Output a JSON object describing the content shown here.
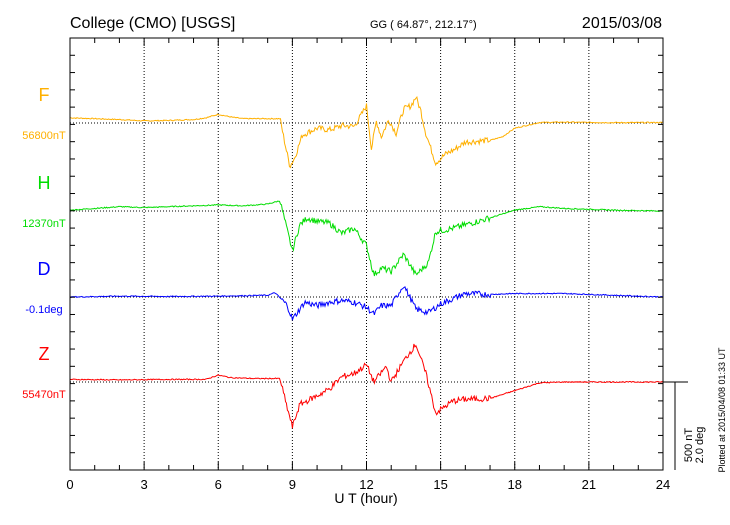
{
  "chart_data": {
    "type": "line",
    "title": "College (CMO)  [USGS]",
    "coords": "GG ( 64.87°, 212.17°)",
    "date": "2015/03/08",
    "xlabel": "U T (hour)",
    "xlim": [
      0,
      24
    ],
    "xticks": [
      "0",
      "3",
      "6",
      "9",
      "12",
      "15",
      "18",
      "21",
      "24"
    ],
    "grid": true,
    "scale_label_1": "500 nT",
    "scale_label_2": "2.0 deg",
    "plotted": "Plotted at 2015/04/08 01:33 UT",
    "series": [
      {
        "name": "F",
        "baseline_label": "56800nT",
        "color": "#ffb000",
        "points": [
          [
            0,
            30
          ],
          [
            1,
            25
          ],
          [
            2,
            20
          ],
          [
            3,
            12
          ],
          [
            4,
            15
          ],
          [
            5,
            20
          ],
          [
            5.5,
            30
          ],
          [
            6,
            50
          ],
          [
            6.5,
            35
          ],
          [
            7,
            25
          ],
          [
            8,
            25
          ],
          [
            8.5,
            25
          ],
          [
            8.7,
            -120
          ],
          [
            8.9,
            -250
          ],
          [
            9.1,
            -200
          ],
          [
            9.4,
            -70
          ],
          [
            10,
            -30
          ],
          [
            10.5,
            -40
          ],
          [
            11,
            -15
          ],
          [
            11.5,
            -20
          ],
          [
            11.8,
            50
          ],
          [
            12,
            100
          ],
          [
            12.2,
            -150
          ],
          [
            12.4,
            10
          ],
          [
            12.6,
            -80
          ],
          [
            12.9,
            20
          ],
          [
            13.2,
            -60
          ],
          [
            13.5,
            80
          ],
          [
            13.8,
            100
          ],
          [
            14,
            150
          ],
          [
            14.2,
            70
          ],
          [
            14.4,
            -60
          ],
          [
            14.8,
            -230
          ],
          [
            15.2,
            -180
          ],
          [
            15.6,
            -150
          ],
          [
            16,
            -110
          ],
          [
            17,
            -100
          ],
          [
            17.5,
            -80
          ],
          [
            18,
            -30
          ],
          [
            19,
            3
          ],
          [
            20,
            5
          ],
          [
            22,
            2
          ],
          [
            24,
            3
          ]
        ]
      },
      {
        "name": "H",
        "baseline_label": "12370nT",
        "color": "#00dd00",
        "points": [
          [
            0,
            5
          ],
          [
            1,
            15
          ],
          [
            2,
            25
          ],
          [
            3,
            20
          ],
          [
            4,
            25
          ],
          [
            5,
            30
          ],
          [
            6,
            35
          ],
          [
            7,
            30
          ],
          [
            8,
            40
          ],
          [
            8.5,
            60
          ],
          [
            8.7,
            -60
          ],
          [
            9,
            -230
          ],
          [
            9.3,
            -80
          ],
          [
            9.6,
            -40
          ],
          [
            10,
            -60
          ],
          [
            10.5,
            -70
          ],
          [
            11,
            -130
          ],
          [
            11.5,
            -100
          ],
          [
            12,
            -200
          ],
          [
            12.3,
            -370
          ],
          [
            12.6,
            -330
          ],
          [
            13,
            -350
          ],
          [
            13.5,
            -250
          ],
          [
            14,
            -370
          ],
          [
            14.5,
            -300
          ],
          [
            14.8,
            -120
          ],
          [
            15.5,
            -100
          ],
          [
            16,
            -80
          ],
          [
            17,
            -40
          ],
          [
            18,
            5
          ],
          [
            19,
            25
          ],
          [
            20,
            15
          ],
          [
            22,
            5
          ],
          [
            24,
            0
          ]
        ]
      },
      {
        "name": "D",
        "baseline_label": "-0.1deg",
        "color": "#0000ff",
        "points": [
          [
            0,
            0
          ],
          [
            2,
            5
          ],
          [
            4,
            3
          ],
          [
            6,
            5
          ],
          [
            8,
            10
          ],
          [
            8.3,
            25
          ],
          [
            8.8,
            -50
          ],
          [
            9,
            -130
          ],
          [
            9.5,
            -30
          ],
          [
            10,
            -50
          ],
          [
            10.5,
            -30
          ],
          [
            11,
            -20
          ],
          [
            11.5,
            -30
          ],
          [
            12,
            -60
          ],
          [
            12.3,
            -100
          ],
          [
            12.6,
            -50
          ],
          [
            13,
            -50
          ],
          [
            13.5,
            70
          ],
          [
            14,
            -70
          ],
          [
            14.5,
            -90
          ],
          [
            15,
            -40
          ],
          [
            16,
            20
          ],
          [
            17,
            15
          ],
          [
            18,
            20
          ],
          [
            20,
            20
          ],
          [
            22,
            10
          ],
          [
            24,
            0
          ]
        ]
      },
      {
        "name": "Z",
        "baseline_label": "55470nT",
        "color": "#ff0000",
        "points": [
          [
            0,
            15
          ],
          [
            2,
            12
          ],
          [
            4,
            15
          ],
          [
            5.5,
            15
          ],
          [
            6,
            40
          ],
          [
            6.5,
            25
          ],
          [
            7.5,
            20
          ],
          [
            8.5,
            20
          ],
          [
            8.7,
            -100
          ],
          [
            9,
            -260
          ],
          [
            9.3,
            -130
          ],
          [
            10,
            -80
          ],
          [
            10.5,
            -40
          ],
          [
            11,
            30
          ],
          [
            11.5,
            50
          ],
          [
            12,
            100
          ],
          [
            12.3,
            0
          ],
          [
            12.8,
            90
          ],
          [
            13,
            0
          ],
          [
            13.5,
            120
          ],
          [
            14,
            220
          ],
          [
            14.4,
            50
          ],
          [
            14.8,
            -180
          ],
          [
            15.5,
            -110
          ],
          [
            16,
            -100
          ],
          [
            17,
            -95
          ],
          [
            18,
            -50
          ],
          [
            19,
            -5
          ],
          [
            20,
            0
          ],
          [
            24,
            0
          ]
        ]
      }
    ]
  }
}
